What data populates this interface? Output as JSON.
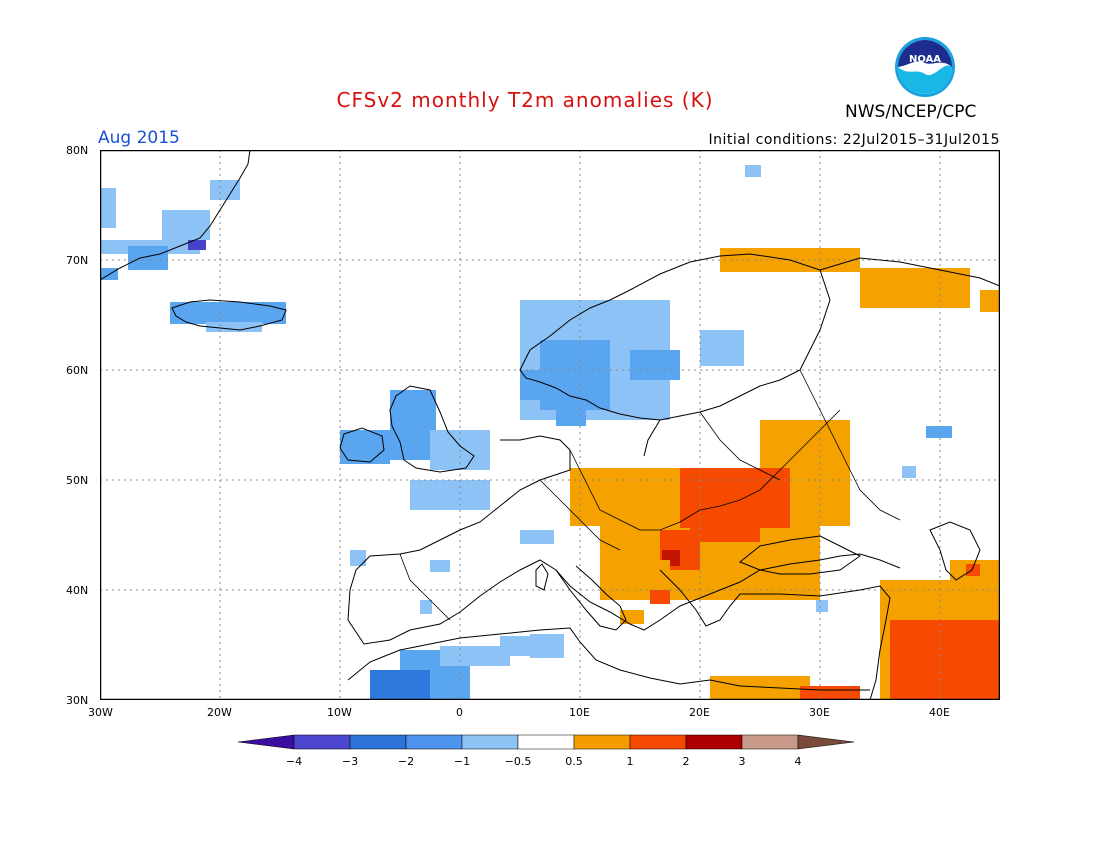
{
  "header": {
    "title": "CFSv2 monthly T2m anomalies (K)",
    "period": "Aug 2015",
    "initial_conditions": "Initial conditions: 22Jul2015–31Jul2015",
    "agency": "NWS/NCEP/CPC",
    "logo_text": "NOAA",
    "logo_icon": "noaa-logo-icon"
  },
  "map": {
    "lon_labels": [
      "30W",
      "20W",
      "10W",
      "0",
      "10E",
      "20E",
      "30E",
      "40E"
    ],
    "lat_labels": [
      "80N",
      "70N",
      "60N",
      "50N",
      "40N",
      "30N"
    ],
    "colors": {
      "blue1": "#8cc2f5",
      "blue2": "#5aa5ef",
      "blue3": "#2f79dd",
      "blue4": "#4743c8",
      "orange1": "#f5a200",
      "orange2": "#f54a00",
      "red3": "#c21400"
    }
  },
  "colorbar": {
    "tick_labels": [
      "−4",
      "−3",
      "−2",
      "−1",
      "−0.5",
      "0.5",
      "1",
      "2",
      "3",
      "4"
    ],
    "colors": [
      "#3a0ea0",
      "#4c46cc",
      "#2e74d8",
      "#4d93ec",
      "#8ec2f5",
      "#ffffff",
      "#f59c00",
      "#f54800",
      "#ad0000",
      "#c99a8a",
      "#7a4a3a"
    ]
  }
}
